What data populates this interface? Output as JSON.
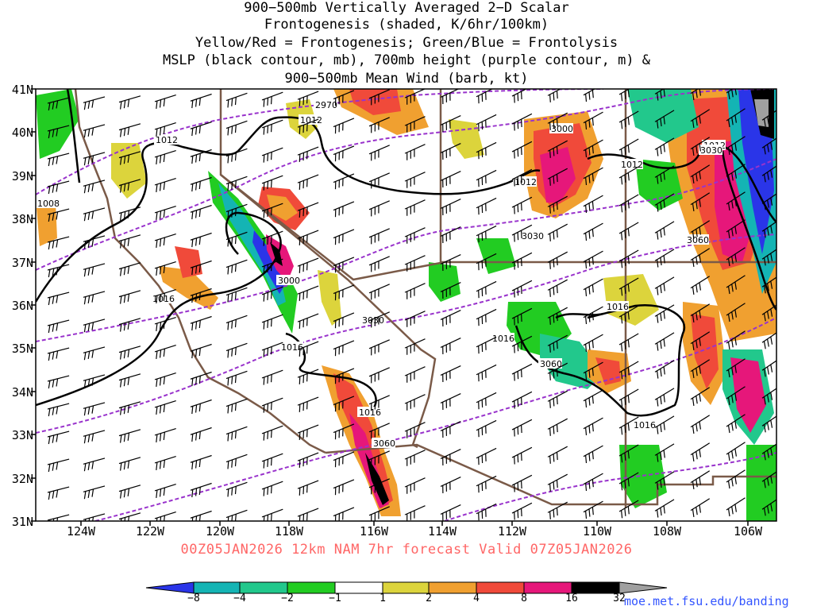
{
  "title": {
    "line1": "900−500mb Vertically Averaged 2−D Scalar",
    "line2": "Frontogenesis (shaded, K/6hr/100km)",
    "line3": "Yellow/Red = Frontogenesis;  Green/Blue = Frontolysis",
    "line4": "MSLP (black contour, mb), 700mb height (purple contour, m) &",
    "line5": "900−500mb Mean Wind (barb, kt)"
  },
  "axes": {
    "lat_labels": [
      "41N",
      "40N",
      "39N",
      "38N",
      "37N",
      "36N",
      "35N",
      "34N",
      "33N",
      "32N",
      "31N"
    ],
    "lon_labels": [
      "124W",
      "122W",
      "120W",
      "118W",
      "116W",
      "114W",
      "112W",
      "110W",
      "108W",
      "106W"
    ]
  },
  "contour_labels": {
    "mslp": [
      "1012",
      "1012",
      "1012",
      "1012",
      "1012",
      "1008",
      "1016",
      "1016",
      "1016",
      "1016",
      "1016",
      "1016"
    ],
    "height": [
      "2970",
      "3000",
      "3000",
      "3030",
      "3030",
      "3060",
      "3060",
      "3060",
      "3030"
    ]
  },
  "footer": {
    "forecast": "00Z05JAN2026 12km NAM 7hr forecast Valid 07Z05JAN2026",
    "credit": "moe.met.fsu.edu/banding"
  },
  "colorbar": {
    "labels": [
      "−8",
      "−4",
      "−2",
      "−1",
      "1",
      "2",
      "4",
      "8",
      "16",
      "32"
    ],
    "colors": [
      "#2a35e8",
      "#14b4b4",
      "#22c88c",
      "#22cc22",
      "#ffffff",
      "#dcd43c",
      "#f0a030",
      "#f04a3a",
      "#e6177a",
      "#000000",
      "#a0a0a0"
    ]
  },
  "colors": {
    "mslp": "#000000",
    "height": "#9933cc",
    "borders": "#7a5a48",
    "footer": "#ff6666",
    "credit": "#3355ff"
  }
}
